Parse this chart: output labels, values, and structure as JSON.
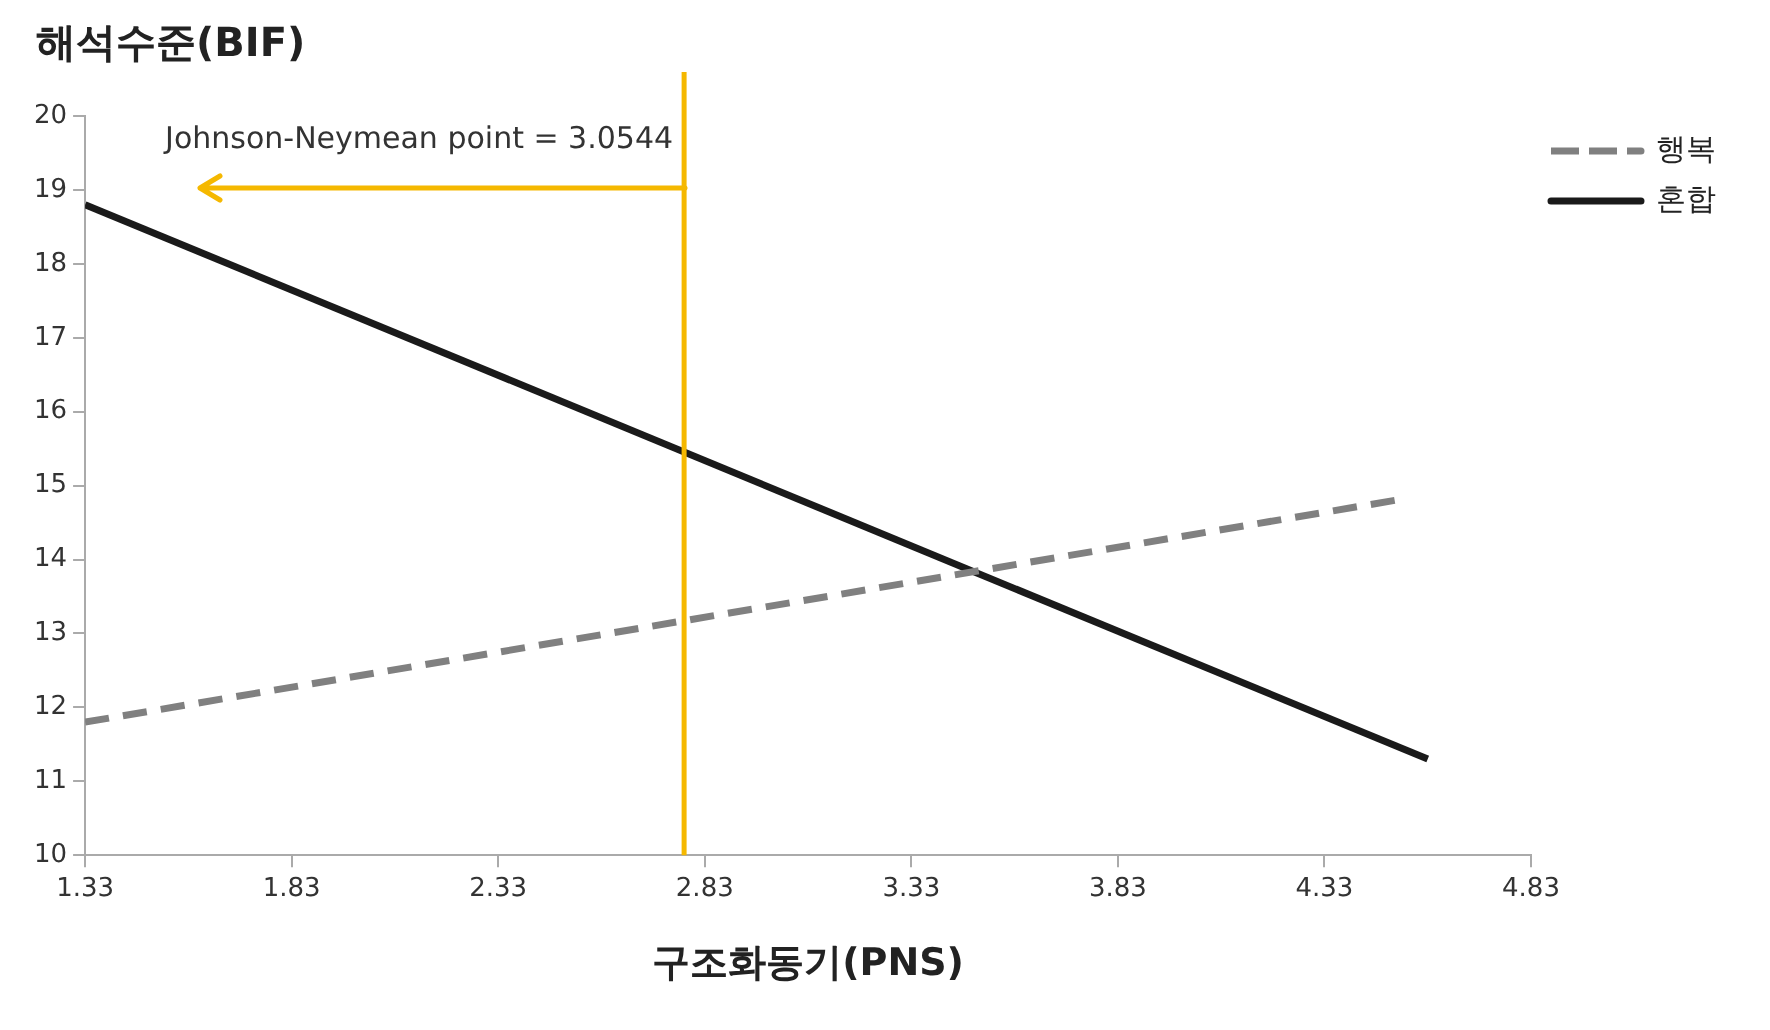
{
  "chart_data": {
    "type": "line",
    "ylabel": "해석수준(BIF)",
    "xlabel": "구조화동기(PNS)",
    "xlim": [
      1.33,
      4.83
    ],
    "xticks": [
      1.33,
      1.83,
      2.33,
      2.83,
      3.33,
      3.83,
      4.33,
      4.83
    ],
    "ylim": [
      10,
      20
    ],
    "yticks": [
      10,
      11,
      12,
      13,
      14,
      15,
      16,
      17,
      18,
      19,
      20
    ],
    "series": [
      {
        "name": "행복",
        "color": "#808080",
        "x": [
          1.33,
          4.5
        ],
        "values": [
          11.8,
          14.8
        ],
        "line_style": "dashed"
      },
      {
        "name": "혼합",
        "color": "#1a1a1a",
        "x": [
          1.33,
          4.58
        ],
        "values": [
          18.8,
          11.3
        ],
        "line_style": "solid"
      }
    ],
    "ref_lines": [
      {
        "axis": "x",
        "value": 2.78,
        "color": "#f5b800"
      }
    ],
    "annotations": [
      "Johnson-Neymean point = 3.0544"
    ],
    "grid": false,
    "legend": "top right",
    "marker": "none"
  }
}
